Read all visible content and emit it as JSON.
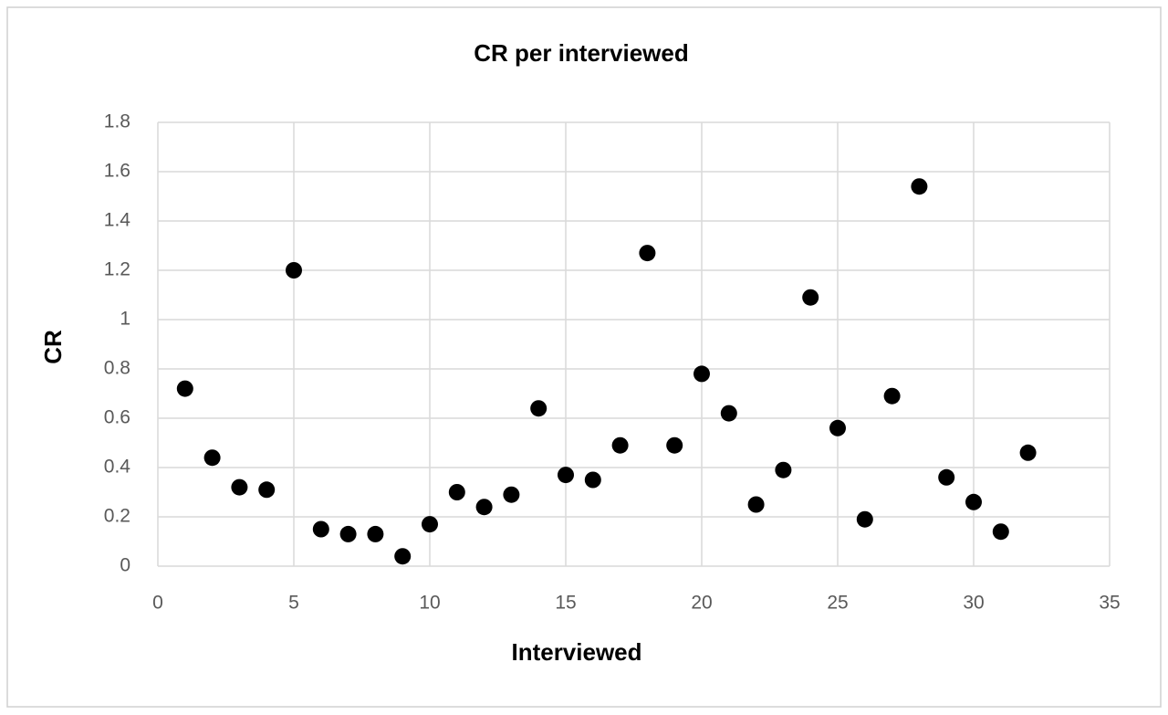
{
  "chart_data": {
    "type": "scatter",
    "title": "CR per interviewed",
    "xlabel": "Interviewed",
    "ylabel": "CR",
    "x": [
      1,
      2,
      3,
      4,
      5,
      6,
      7,
      8,
      9,
      10,
      11,
      12,
      13,
      14,
      15,
      16,
      17,
      18,
      19,
      20,
      21,
      22,
      23,
      24,
      25,
      26,
      27,
      28,
      29,
      30,
      31,
      32
    ],
    "values": [
      0.72,
      0.44,
      0.32,
      0.31,
      1.2,
      0.15,
      0.13,
      0.13,
      0.04,
      0.17,
      0.3,
      0.24,
      0.29,
      0.64,
      0.37,
      0.35,
      0.49,
      1.27,
      0.49,
      0.78,
      0.62,
      0.25,
      0.39,
      1.09,
      0.56,
      0.19,
      0.69,
      1.54,
      0.36,
      0.26,
      0.14,
      0.46
    ],
    "color": "#000000",
    "xlim": [
      0,
      35
    ],
    "xticks": [
      0,
      5,
      10,
      15,
      20,
      25,
      30,
      35
    ],
    "ylim": [
      0,
      1.8
    ],
    "yticks": [
      0,
      0.2,
      0.4,
      0.6,
      0.8,
      1,
      1.2,
      1.4,
      1.6,
      1.8
    ],
    "grid": true
  }
}
